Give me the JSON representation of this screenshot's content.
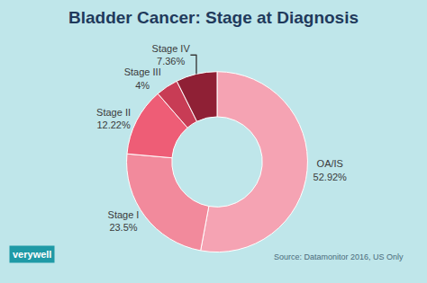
{
  "chart_data": {
    "type": "pie",
    "title": "Bladder Cancer: Stage at Diagnosis",
    "categories": [
      "OA/IS",
      "Stage I",
      "Stage II",
      "Stage III",
      "Stage IV"
    ],
    "values": [
      52.92,
      23.5,
      12.22,
      4,
      7.36
    ],
    "value_labels": [
      "52.92%",
      "23.5%",
      "12.22%",
      "4%",
      "7.36%"
    ],
    "colors": [
      "#f5a3b3",
      "#f28a9c",
      "#ee5d76",
      "#c83c55",
      "#8f2035"
    ],
    "data_labels": true,
    "annotations": [
      "Source: Datamonitor 2016, US Only",
      "verywell"
    ]
  }
}
